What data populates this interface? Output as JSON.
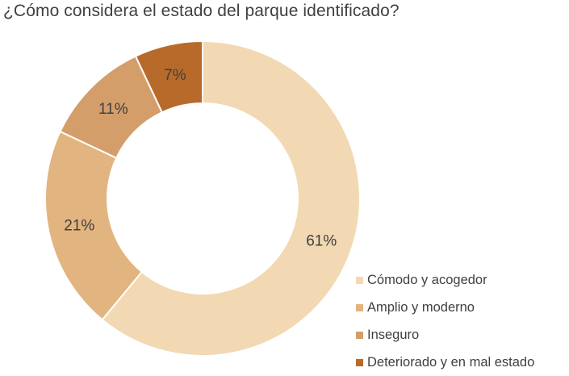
{
  "chart_data": {
    "type": "pie",
    "variant": "donut",
    "title": "¿Cómo considera el estado del parque identificado?",
    "categories": [
      "Cómodo y acogedor",
      "Amplio y moderno",
      "Inseguro",
      "Deteriorado y en mal estado"
    ],
    "values": [
      61,
      21,
      11,
      7
    ],
    "data_labels": [
      "61%",
      "21%",
      "11%",
      "7%"
    ],
    "colors": [
      "#F2D9B3",
      "#E2B47F",
      "#D39E6A",
      "#B86A2A"
    ],
    "legend_placement": "bottom-right"
  }
}
